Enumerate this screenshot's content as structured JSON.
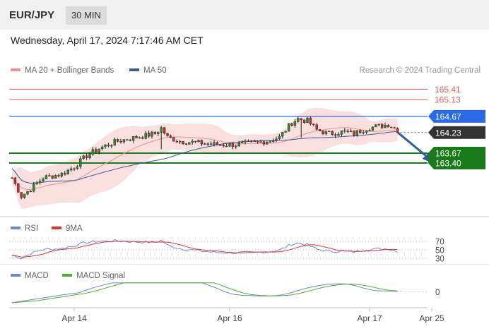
{
  "header": {
    "pair": "EUR/JPY",
    "timeframe": "30 MIN"
  },
  "datetime": "Wednesday, April 17, 2024 7:17:46 AM CET",
  "copyright": "Research © 2024 Trading Central",
  "colors": {
    "resistance": "#e05a5a",
    "support": "#1a7a1a",
    "pivot": "#2a6ae8",
    "price": "#333333",
    "bollinger": "#f8d4d4",
    "ma20": "#f09090",
    "ma50": "#3a5a9a",
    "rsi": "#6a8ad8",
    "rsi_ma": "#dd3333",
    "macd": "#6a8ad8",
    "macd_signal": "#55aa33"
  },
  "legend": {
    "main": [
      {
        "label": "MA 20 + Bollinger Bands",
        "color": "#f09090"
      },
      {
        "label": "MA 50",
        "color": "#3a5a9a"
      }
    ],
    "rsi": [
      {
        "label": "RSI",
        "color": "#6a8ad8"
      },
      {
        "label": "9MA",
        "color": "#dd3333"
      }
    ],
    "macd": [
      {
        "label": "MACD",
        "color": "#6a8ad8"
      },
      {
        "label": "MACD Signal",
        "color": "#55aa33"
      }
    ]
  },
  "chart_data": {
    "type": "candlestick",
    "instrument": "EUR/JPY",
    "interval": "30 MIN",
    "x_ticks": [
      "Apr 14",
      "Apr 16",
      "Apr 17",
      "Apr 25"
    ],
    "x_tick_index": [
      20,
      70,
      115,
      135
    ],
    "ylim": [
      162.0,
      165.8
    ],
    "levels": [
      {
        "value": 165.41,
        "label": "165.41",
        "kind": "resistance"
      },
      {
        "value": 165.13,
        "label": "165.13",
        "kind": "resistance"
      },
      {
        "value": 164.67,
        "label": "164.67",
        "kind": "pivot"
      },
      {
        "value": 164.23,
        "label": "164.23",
        "kind": "price"
      },
      {
        "value": 163.67,
        "label": "163.67",
        "kind": "support"
      },
      {
        "value": 163.4,
        "label": "163.40",
        "kind": "support"
      }
    ],
    "forecast_arrow": {
      "from_index": 125,
      "from": 164.23,
      "to_index": 134,
      "to": 163.4
    },
    "rsi": {
      "levels": [
        "70",
        "50",
        "30"
      ],
      "level_values": [
        70,
        50,
        30
      ],
      "ylim": [
        20,
        80
      ]
    },
    "macd": {
      "levels": [
        "0"
      ],
      "level_values": [
        0
      ],
      "ylim": [
        -0.6,
        0.4
      ]
    }
  }
}
